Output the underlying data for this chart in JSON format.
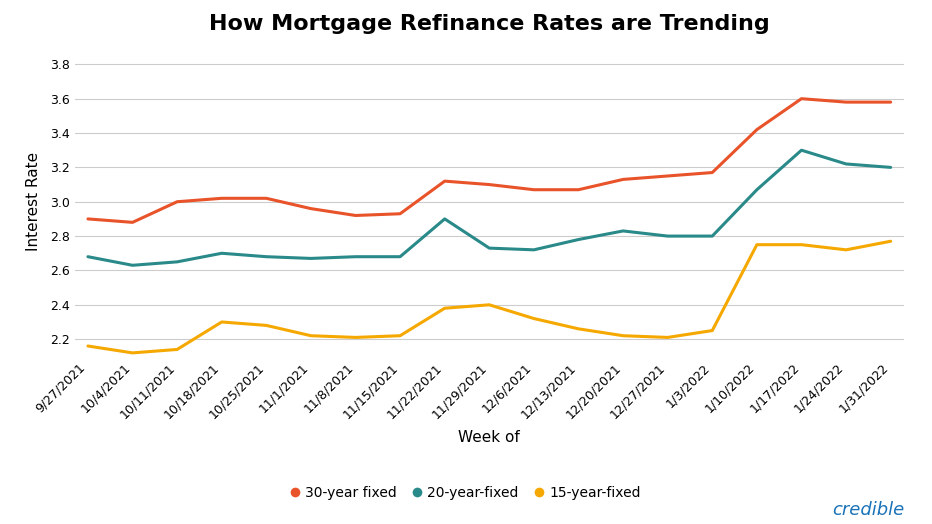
{
  "title": "How Mortgage Refinance Rates are Trending",
  "xlabel": "Week of",
  "ylabel": "Interest Rate",
  "xlabels": [
    "9/27/2021",
    "10/4/2021",
    "10/11/2021",
    "10/18/2021",
    "10/25/2021",
    "11/1/2021",
    "11/8/2021",
    "11/15/2021",
    "11/22/2021",
    "11/29/2021",
    "12/6/2021",
    "12/13/2021",
    "12/20/2021",
    "12/27/2021",
    "1/3/2022",
    "1/10/2022",
    "1/17/2022",
    "1/24/2022",
    "1/31/2022"
  ],
  "series_30yr": [
    2.9,
    2.88,
    3.0,
    3.02,
    3.02,
    2.96,
    2.92,
    2.93,
    3.12,
    3.1,
    3.07,
    3.07,
    3.13,
    3.15,
    3.17,
    3.42,
    3.6,
    3.58,
    3.58
  ],
  "series_20yr": [
    2.68,
    2.63,
    2.65,
    2.7,
    2.68,
    2.67,
    2.68,
    2.68,
    2.9,
    2.73,
    2.72,
    2.78,
    2.83,
    2.8,
    2.8,
    3.07,
    3.3,
    3.22,
    3.2
  ],
  "series_15yr": [
    2.16,
    2.12,
    2.14,
    2.3,
    2.28,
    2.22,
    2.21,
    2.22,
    2.38,
    2.4,
    2.32,
    2.26,
    2.22,
    2.21,
    2.25,
    2.75,
    2.75,
    2.72,
    2.77
  ],
  "color_30yr": "#e8532a",
  "color_20yr": "#2a8a8a",
  "color_15yr": "#f5a800",
  "ylim": [
    2.1,
    3.9
  ],
  "yticks": [
    2.2,
    2.4,
    2.6,
    2.8,
    3.0,
    3.2,
    3.4,
    3.6,
    3.8
  ],
  "legend_labels": [
    "30-year fixed",
    "20-year-fixed",
    "15-year-fixed"
  ],
  "background_color": "#ffffff",
  "grid_color": "#cccccc",
  "line_width": 2.2,
  "credible_text": "credible",
  "credible_color": "#1a73b8",
  "title_fontsize": 16,
  "axis_label_fontsize": 11,
  "tick_fontsize": 9,
  "legend_fontsize": 10
}
